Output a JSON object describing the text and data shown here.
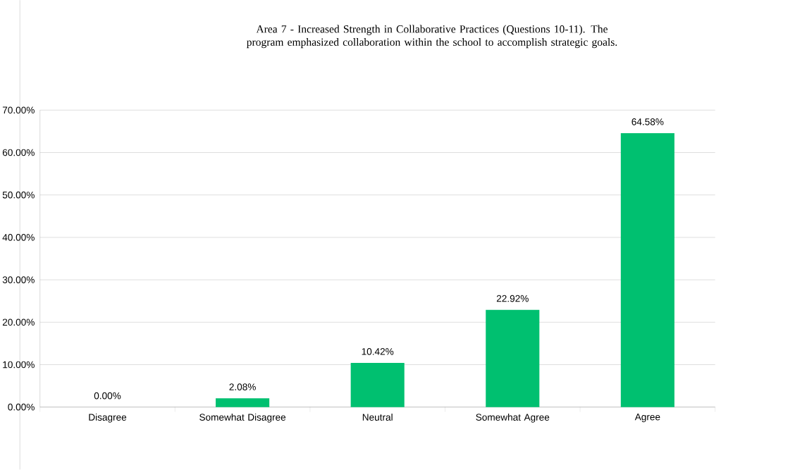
{
  "chart_data": {
    "type": "bar",
    "title": "Area 7 - Increased Strength in Collaborative Practices (Questions 10-11).  The program emphasized collaboration within the school to accomplish strategic goals.",
    "categories": [
      "Disagree",
      "Somewhat Disagree",
      "Neutral",
      "Somewhat Agree",
      "Agree"
    ],
    "values": [
      0.0,
      2.08,
      10.42,
      22.92,
      64.58
    ],
    "value_labels": [
      "0.00%",
      "2.08%",
      "10.42%",
      "22.92%",
      "64.58%"
    ],
    "color": "#00c070",
    "ylim": [
      0,
      70
    ],
    "yticks": [
      {
        "value": 0,
        "label": "0.00%"
      },
      {
        "value": 10,
        "label": "10.00%"
      },
      {
        "value": 20,
        "label": "20.00%"
      },
      {
        "value": 30,
        "label": "30.00%"
      },
      {
        "value": 40,
        "label": "40.00%"
      },
      {
        "value": 50,
        "label": "50.00%"
      },
      {
        "value": 60,
        "label": "60.00%"
      },
      {
        "value": 70,
        "label": "70.00%"
      }
    ],
    "grid": "y"
  }
}
